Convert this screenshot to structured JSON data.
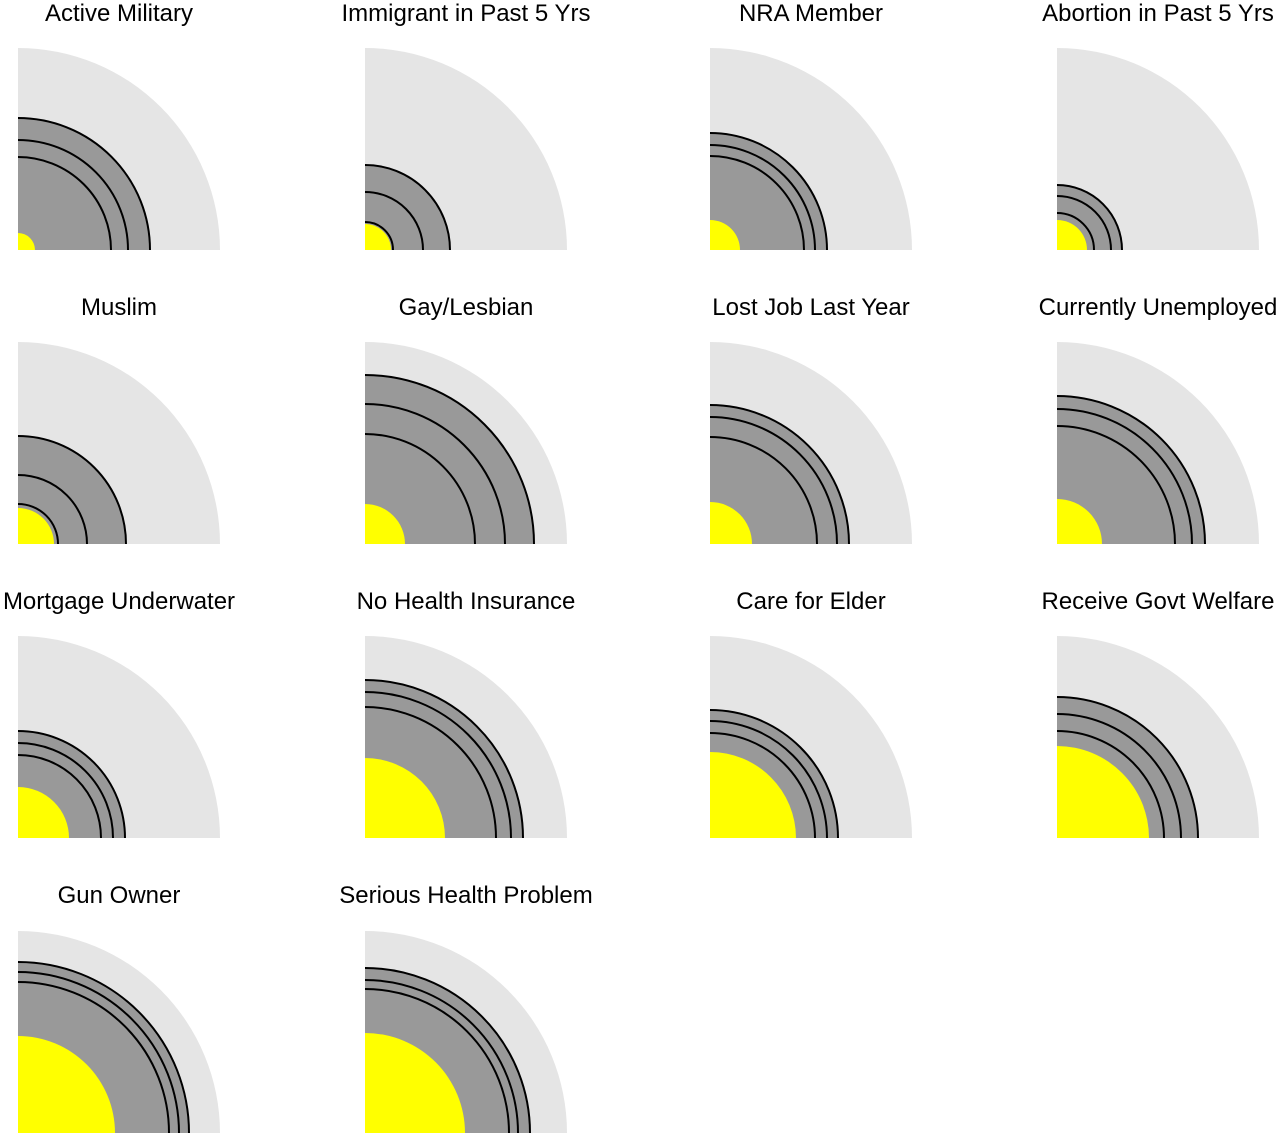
{
  "figure": {
    "background": "#ffffff",
    "title_color": "#000000"
  },
  "colors": {
    "outer_quarter_fill": "#e5e5e5",
    "gray_band_fill": "#999999",
    "yellow_quarter_fill": "#ffff00",
    "arc_stroke": "#000000"
  },
  "chart_data": {
    "type": "quarter-circle nested-arc small multiples",
    "layout": {
      "columns": 4,
      "rows": 4,
      "panel_count": 14,
      "grid_on": false,
      "legend": "none",
      "origin": "bottom-left corner of each panel, arcs sweep 90 degrees up-right"
    },
    "scale": {
      "outer_gray_radius_px": 202,
      "units": "screen px (radius measured from bottom-left origin of each panel)"
    },
    "panels": [
      {
        "title": "Active Military",
        "gray_band_outer_r": 132,
        "arc_mid_r": 110,
        "arc_inner_r": 93,
        "yellow_r": 17
      },
      {
        "title": "Immigrant in Past 5 Yrs",
        "gray_band_outer_r": 85,
        "arc_mid_r": 58,
        "arc_inner_r": 28,
        "yellow_r": 26
      },
      {
        "title": "NRA Member",
        "gray_band_outer_r": 117,
        "arc_mid_r": 105,
        "arc_inner_r": 94,
        "yellow_r": 30
      },
      {
        "title": "Abortion in Past 5 Yrs",
        "gray_band_outer_r": 65,
        "arc_mid_r": 54,
        "arc_inner_r": 37,
        "yellow_r": 30
      },
      {
        "title": "Muslim",
        "gray_band_outer_r": 108,
        "arc_mid_r": 69,
        "arc_inner_r": 40,
        "yellow_r": 36
      },
      {
        "title": "Gay/Lesbian",
        "gray_band_outer_r": 169,
        "arc_mid_r": 140,
        "arc_inner_r": 110,
        "yellow_r": 40
      },
      {
        "title": "Lost Job Last Year",
        "gray_band_outer_r": 139,
        "arc_mid_r": 127,
        "arc_inner_r": 107,
        "yellow_r": 42
      },
      {
        "title": "Currently Unemployed",
        "gray_band_outer_r": 148,
        "arc_mid_r": 135,
        "arc_inner_r": 118,
        "yellow_r": 45
      },
      {
        "title": "Mortgage Underwater",
        "gray_band_outer_r": 107,
        "arc_mid_r": 95,
        "arc_inner_r": 83,
        "yellow_r": 51
      },
      {
        "title": "No Health Insurance",
        "gray_band_outer_r": 158,
        "arc_mid_r": 146,
        "arc_inner_r": 131,
        "yellow_r": 80
      },
      {
        "title": "Care for Elder",
        "gray_band_outer_r": 128,
        "arc_mid_r": 117,
        "arc_inner_r": 105,
        "yellow_r": 86
      },
      {
        "title": "Receive Govt Welfare",
        "gray_band_outer_r": 141,
        "arc_mid_r": 124,
        "arc_inner_r": 107,
        "yellow_r": 92
      },
      {
        "title": "Gun Owner",
        "gray_band_outer_r": 171,
        "arc_mid_r": 161,
        "arc_inner_r": 151,
        "yellow_r": 97
      },
      {
        "title": "Serious Health Problem",
        "gray_band_outer_r": 165,
        "arc_mid_r": 153,
        "arc_inner_r": 144,
        "yellow_r": 100
      }
    ]
  }
}
